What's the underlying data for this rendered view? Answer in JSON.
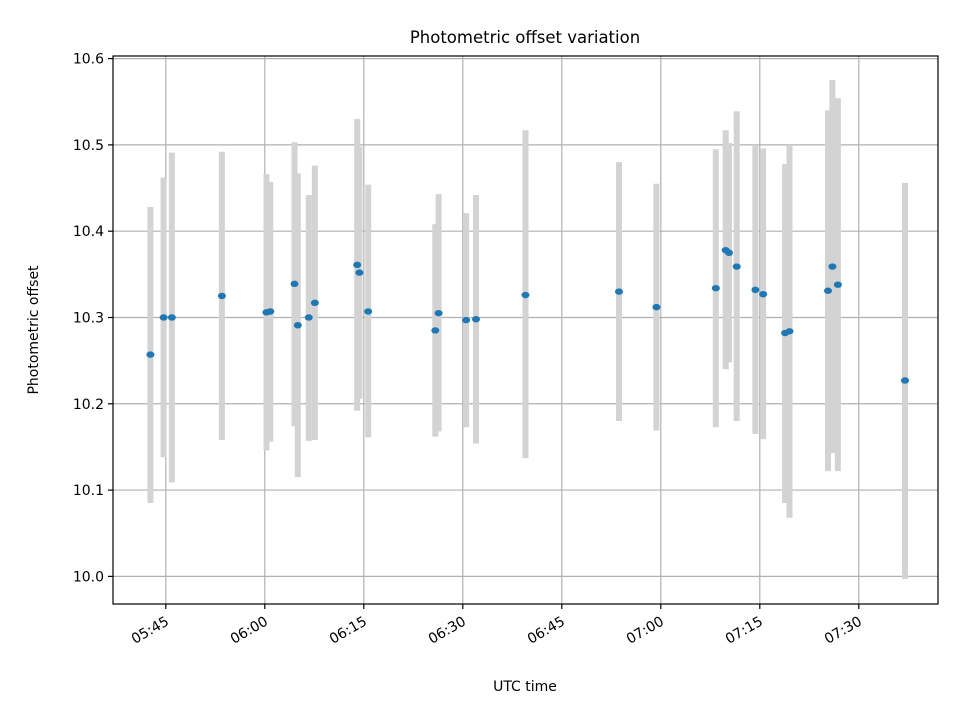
{
  "chart_data": {
    "type": "scatter",
    "title": "Photometric offset variation",
    "xlabel": "UTC time",
    "ylabel": "Photometric offset",
    "x_ticks": [
      "05:45",
      "06:00",
      "06:15",
      "06:30",
      "06:45",
      "07:00",
      "07:15",
      "07:30"
    ],
    "y_ticks": [
      "10.0",
      "10.1",
      "10.2",
      "10.3",
      "10.4",
      "10.5",
      "10.6"
    ],
    "xlim": [
      "05:37",
      "07:42"
    ],
    "ylim": [
      9.968,
      10.603
    ],
    "grid": true,
    "point_color": "#1f77b4",
    "errorbar_color": "#d3d3d3",
    "points": [
      {
        "x": "05:42:40",
        "y": 10.257,
        "lo": 10.085,
        "hi": 10.428
      },
      {
        "x": "05:44:40",
        "y": 10.3,
        "lo": 10.138,
        "hi": 10.462
      },
      {
        "x": "05:45:55",
        "y": 10.3,
        "lo": 10.109,
        "hi": 10.491
      },
      {
        "x": "05:53:30",
        "y": 10.325,
        "lo": 10.158,
        "hi": 10.492
      },
      {
        "x": "06:00:15",
        "y": 10.306,
        "lo": 10.146,
        "hi": 10.466
      },
      {
        "x": "06:00:50",
        "y": 10.307,
        "lo": 10.156,
        "hi": 10.457
      },
      {
        "x": "06:04:30",
        "y": 10.339,
        "lo": 10.174,
        "hi": 10.503
      },
      {
        "x": "06:05:00",
        "y": 10.291,
        "lo": 10.115,
        "hi": 10.467
      },
      {
        "x": "06:06:40",
        "y": 10.3,
        "lo": 10.157,
        "hi": 10.442
      },
      {
        "x": "06:07:35",
        "y": 10.317,
        "lo": 10.158,
        "hi": 10.476
      },
      {
        "x": "06:14:00",
        "y": 10.361,
        "lo": 10.192,
        "hi": 10.53
      },
      {
        "x": "06:14:20",
        "y": 10.352,
        "lo": 10.206,
        "hi": 10.498
      },
      {
        "x": "06:15:40",
        "y": 10.307,
        "lo": 10.161,
        "hi": 10.454
      },
      {
        "x": "06:25:50",
        "y": 10.285,
        "lo": 10.162,
        "hi": 10.408
      },
      {
        "x": "06:26:20",
        "y": 10.305,
        "lo": 10.168,
        "hi": 10.443
      },
      {
        "x": "06:30:30",
        "y": 10.297,
        "lo": 10.173,
        "hi": 10.421
      },
      {
        "x": "06:32:00",
        "y": 10.298,
        "lo": 10.154,
        "hi": 10.442
      },
      {
        "x": "06:39:30",
        "y": 10.326,
        "lo": 10.137,
        "hi": 10.517
      },
      {
        "x": "06:53:40",
        "y": 10.33,
        "lo": 10.18,
        "hi": 10.48
      },
      {
        "x": "06:59:20",
        "y": 10.312,
        "lo": 10.169,
        "hi": 10.455
      },
      {
        "x": "07:08:20",
        "y": 10.334,
        "lo": 10.173,
        "hi": 10.495
      },
      {
        "x": "07:09:50",
        "y": 10.378,
        "lo": 10.24,
        "hi": 10.517
      },
      {
        "x": "07:10:20",
        "y": 10.375,
        "lo": 10.248,
        "hi": 10.502
      },
      {
        "x": "07:11:30",
        "y": 10.359,
        "lo": 10.18,
        "hi": 10.539
      },
      {
        "x": "07:14:20",
        "y": 10.332,
        "lo": 10.165,
        "hi": 10.5
      },
      {
        "x": "07:15:30",
        "y": 10.327,
        "lo": 10.159,
        "hi": 10.496
      },
      {
        "x": "07:18:50",
        "y": 10.282,
        "lo": 10.085,
        "hi": 10.478
      },
      {
        "x": "07:19:30",
        "y": 10.284,
        "lo": 10.068,
        "hi": 10.5
      },
      {
        "x": "07:25:20",
        "y": 10.331,
        "lo": 10.122,
        "hi": 10.54
      },
      {
        "x": "07:26:00",
        "y": 10.359,
        "lo": 10.143,
        "hi": 10.575
      },
      {
        "x": "07:26:50",
        "y": 10.338,
        "lo": 10.122,
        "hi": 10.554
      },
      {
        "x": "07:37:00",
        "y": 10.227,
        "lo": 9.997,
        "hi": 10.456
      }
    ]
  }
}
